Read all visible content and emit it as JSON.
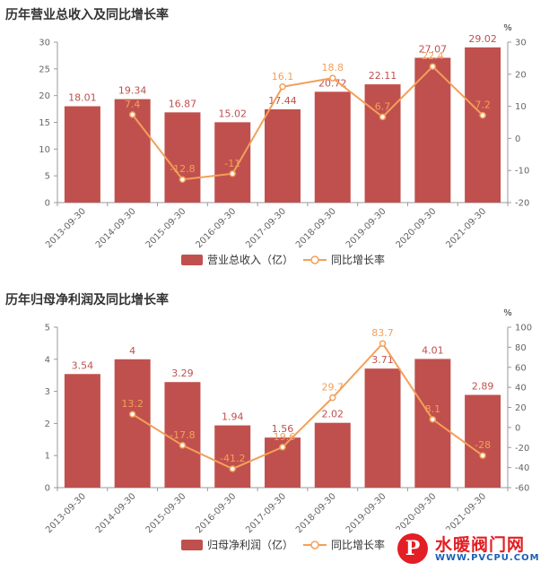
{
  "chart_data": [
    {
      "type": "bar",
      "title": "历年营业总收入及同比增长率",
      "categories": [
        "2013-09-30",
        "2014-09-30",
        "2015-09-30",
        "2016-09-30",
        "2017-09-30",
        "2018-09-30",
        "2019-09-30",
        "2020-09-30",
        "2021-09-30"
      ],
      "series": [
        {
          "name": "营业总收入（亿）",
          "type": "bar",
          "axis": "left",
          "values": [
            18.01,
            19.34,
            16.87,
            15.02,
            17.44,
            20.72,
            22.11,
            27.07,
            29.02
          ],
          "labels": [
            "18.01",
            "19.34",
            "16.87",
            "15.02",
            "17.44",
            "20.72",
            "22.11",
            "27.07",
            "29.02"
          ]
        },
        {
          "name": "同比增长率",
          "type": "line",
          "axis": "right",
          "values": [
            null,
            7.4,
            -12.8,
            -11,
            16.1,
            18.8,
            6.7,
            22.4,
            7.2
          ],
          "labels": [
            "",
            "7.4",
            "-12.8",
            "-11",
            "16.1",
            "18.8",
            "6.7",
            "22.4",
            "7.2"
          ]
        }
      ],
      "left_axis": {
        "min": 0,
        "max": 30,
        "ticks": [
          "0",
          "5",
          "10",
          "15",
          "20",
          "25",
          "30"
        ]
      },
      "right_axis": {
        "min": -20,
        "max": 30,
        "unit": "%",
        "ticks": [
          "-20",
          "-10",
          "0",
          "10",
          "20",
          "30"
        ]
      },
      "legend_position": "bottom-center"
    },
    {
      "type": "bar",
      "title": "历年归母净利润及同比增长率",
      "categories": [
        "2013-09-30",
        "2014-09-30",
        "2015-09-30",
        "2016-09-30",
        "2017-09-30",
        "2018-09-30",
        "2019-09-30",
        "2020-09-30",
        "2021-09-30"
      ],
      "series": [
        {
          "name": "归母净利润（亿）",
          "type": "bar",
          "axis": "left",
          "values": [
            3.54,
            4,
            3.29,
            1.94,
            1.56,
            2.02,
            3.71,
            4.01,
            2.89
          ],
          "labels": [
            "3.54",
            "4",
            "3.29",
            "1.94",
            "1.56",
            "2.02",
            "3.71",
            "4.01",
            "2.89"
          ]
        },
        {
          "name": "同比增长率",
          "type": "line",
          "axis": "right",
          "values": [
            null,
            13.2,
            -17.8,
            -41.2,
            -19.6,
            29.7,
            83.7,
            8.1,
            -28
          ],
          "labels": [
            "",
            "13.2",
            "-17.8",
            "-41.2",
            "-19.6",
            "29.7",
            "83.7",
            "8.1",
            "-28"
          ]
        }
      ],
      "left_axis": {
        "min": 0,
        "max": 5,
        "ticks": [
          "0",
          "1",
          "2",
          "3",
          "4",
          "5"
        ]
      },
      "right_axis": {
        "min": -60,
        "max": 100,
        "unit": "%",
        "ticks": [
          "-60",
          "-40",
          "-20",
          "0",
          "20",
          "40",
          "60",
          "80",
          "100"
        ]
      },
      "legend_position": "bottom-center"
    }
  ],
  "colors": {
    "bar": "#c0504d",
    "line": "#f2a05a",
    "axis": "#999999",
    "text": "#666666"
  },
  "watermark": {
    "logo_letter": "P",
    "name": "水暖阀门网",
    "url": "WWW.PVCPU.COM"
  }
}
